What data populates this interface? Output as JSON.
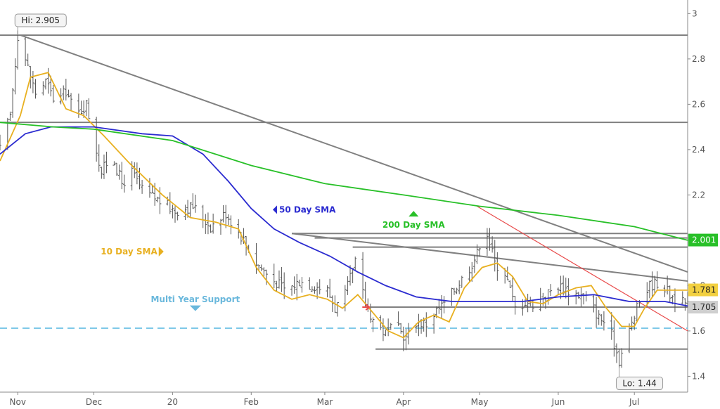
{
  "chart_data": {
    "type": "line",
    "title": "",
    "xlabel": "",
    "ylabel": "",
    "x_ticks": [
      "Nov",
      "Dec",
      "20",
      "Feb",
      "Mar",
      "Apr",
      "May",
      "Jun",
      "Jul"
    ],
    "y_ticks": [
      1.4,
      1.6,
      1.8,
      2,
      2.2,
      2.4,
      2.6,
      2.8,
      3
    ],
    "y_tick_labels": [
      "1.4",
      "1.6",
      "1.8",
      "2",
      "2.2",
      "2.4",
      "2.6",
      "2.8",
      "3"
    ],
    "ylim": [
      1.33,
      3.06
    ],
    "x_range": [
      "2019-10-25",
      "2020-07-22"
    ],
    "grid": false,
    "colors": {
      "price_bars": "#555555",
      "sma10": "#e8b020",
      "sma50": "#2b2bd0",
      "sma200": "#28c028",
      "trendlines": "#808080",
      "red_trend": "#e84a4a",
      "support_line": "#7ec8e8",
      "support_text": "#6ab8dc",
      "badge_200": "#28c028",
      "badge_10": "#f2d040",
      "badge_price": "#cfcfcf"
    },
    "series": [
      {
        "key": "sma10",
        "points": [
          [
            "2019-10-25",
            2.35
          ],
          [
            "2019-11-02",
            2.55
          ],
          [
            "2019-11-06",
            2.72
          ],
          [
            "2019-11-13",
            2.74
          ],
          [
            "2019-11-20",
            2.58
          ],
          [
            "2019-11-27",
            2.55
          ],
          [
            "2019-12-05",
            2.46
          ],
          [
            "2019-12-15",
            2.34
          ],
          [
            "2019-12-28",
            2.2
          ],
          [
            "2020-01-08",
            2.1
          ],
          [
            "2020-01-18",
            2.08
          ],
          [
            "2020-01-27",
            2.05
          ],
          [
            "2020-02-03",
            1.88
          ],
          [
            "2020-02-10",
            1.78
          ],
          [
            "2020-02-17",
            1.74
          ],
          [
            "2020-02-24",
            1.76
          ],
          [
            "2020-03-02",
            1.74
          ],
          [
            "2020-03-08",
            1.7
          ],
          [
            "2020-03-14",
            1.76
          ],
          [
            "2020-03-20",
            1.68
          ],
          [
            "2020-03-26",
            1.6
          ],
          [
            "2020-04-01",
            1.57
          ],
          [
            "2020-04-07",
            1.64
          ],
          [
            "2020-04-13",
            1.67
          ],
          [
            "2020-04-19",
            1.64
          ],
          [
            "2020-04-25",
            1.79
          ],
          [
            "2020-05-02",
            1.88
          ],
          [
            "2020-05-08",
            1.9
          ],
          [
            "2020-05-14",
            1.84
          ],
          [
            "2020-05-20",
            1.73
          ],
          [
            "2020-05-26",
            1.72
          ],
          [
            "2020-06-01",
            1.76
          ],
          [
            "2020-06-08",
            1.79
          ],
          [
            "2020-06-14",
            1.8
          ],
          [
            "2020-06-20",
            1.7
          ],
          [
            "2020-06-26",
            1.62
          ],
          [
            "2020-07-01",
            1.62
          ],
          [
            "2020-07-05",
            1.7
          ],
          [
            "2020-07-10",
            1.78
          ],
          [
            "2020-07-16",
            1.78
          ],
          [
            "2020-07-22",
            1.78
          ]
        ]
      },
      {
        "key": "sma50",
        "points": [
          [
            "2019-10-25",
            2.38
          ],
          [
            "2019-11-04",
            2.47
          ],
          [
            "2019-11-14",
            2.5
          ],
          [
            "2019-12-01",
            2.5
          ],
          [
            "2019-12-20",
            2.47
          ],
          [
            "2020-01-01",
            2.46
          ],
          [
            "2020-01-13",
            2.38
          ],
          [
            "2020-01-23",
            2.26
          ],
          [
            "2020-02-01",
            2.14
          ],
          [
            "2020-02-10",
            2.05
          ],
          [
            "2020-02-20",
            1.99
          ],
          [
            "2020-03-03",
            1.93
          ],
          [
            "2020-03-14",
            1.86
          ],
          [
            "2020-03-25",
            1.8
          ],
          [
            "2020-04-06",
            1.75
          ],
          [
            "2020-04-20",
            1.73
          ],
          [
            "2020-05-04",
            1.73
          ],
          [
            "2020-05-18",
            1.73
          ],
          [
            "2020-06-01",
            1.75
          ],
          [
            "2020-06-15",
            1.76
          ],
          [
            "2020-06-29",
            1.73
          ],
          [
            "2020-07-13",
            1.73
          ],
          [
            "2020-07-22",
            1.71
          ]
        ]
      },
      {
        "key": "sma200",
        "points": [
          [
            "2019-10-25",
            2.52
          ],
          [
            "2019-11-15",
            2.5
          ],
          [
            "2019-12-01",
            2.49
          ],
          [
            "2020-01-01",
            2.44
          ],
          [
            "2020-02-01",
            2.33
          ],
          [
            "2020-03-01",
            2.25
          ],
          [
            "2020-04-01",
            2.2
          ],
          [
            "2020-05-01",
            2.15
          ],
          [
            "2020-06-01",
            2.11
          ],
          [
            "2020-07-01",
            2.06
          ],
          [
            "2020-07-22",
            2.0
          ]
        ]
      }
    ],
    "trendlines": [
      {
        "key": "upper-resistance",
        "color_key": "trendlines",
        "from": [
          "2019-10-25",
          2.905
        ],
        "to": [
          "2020-07-22",
          2.905
        ]
      },
      {
        "key": "mid-resistance",
        "color_key": "trendlines",
        "from": [
          "2019-10-25",
          2.52
        ],
        "to": [
          "2020-07-22",
          2.52
        ]
      },
      {
        "key": "long-downtrend",
        "color_key": "trendlines",
        "from": [
          "2019-11-02",
          2.905
        ],
        "to": [
          "2020-07-22",
          1.86
        ]
      },
      {
        "key": "feb-horizontal",
        "color_key": "trendlines",
        "from": [
          "2020-02-17",
          2.03
        ],
        "to": [
          "2020-07-22",
          2.03
        ]
      },
      {
        "key": "feb-horizontal-2",
        "color_key": "trendlines",
        "from": [
          "2020-02-26",
          2.01
        ],
        "to": [
          "2020-07-22",
          2.01
        ]
      },
      {
        "key": "mar-horizontal",
        "color_key": "trendlines",
        "from": [
          "2020-03-12",
          1.97
        ],
        "to": [
          "2020-07-22",
          1.97
        ]
      },
      {
        "key": "feb-downtrend",
        "color_key": "trendlines",
        "from": [
          "2020-02-17",
          2.03
        ],
        "to": [
          "2020-07-22",
          1.82
        ]
      },
      {
        "key": "apr-support",
        "color_key": "trendlines",
        "from": [
          "2020-03-19",
          1.705
        ],
        "to": [
          "2020-07-22",
          1.705
        ]
      },
      {
        "key": "apr-low",
        "color_key": "trendlines",
        "from": [
          "2020-03-21",
          1.52
        ],
        "to": [
          "2020-07-22",
          1.52
        ]
      },
      {
        "key": "may-red-downtrend",
        "color_key": "red_trend",
        "from": [
          "2020-04-30",
          2.15
        ],
        "to": [
          "2020-07-22",
          1.6
        ]
      }
    ],
    "multi_year_support": {
      "label": "Multi Year Support",
      "value": 1.612,
      "label_date": "2020-01-10",
      "label_value": 1.74,
      "arrow_value": 1.7
    },
    "annotations": [
      {
        "key": "sma50-label",
        "text": "50 Day SMA",
        "date": "2020-02-12",
        "value": 2.135,
        "color_key": "sma50",
        "arrow": "left"
      },
      {
        "key": "sma200-label",
        "text": "200 Day SMA",
        "date": "2020-04-05",
        "value": 2.08,
        "color_key": "sma200",
        "arrow": "up"
      },
      {
        "key": "sma10-label",
        "text": "10 Day SMA",
        "date": "2019-12-26",
        "value": 1.95,
        "color_key": "sma10",
        "arrow": "right"
      }
    ],
    "hi_label": {
      "text": "Hi: 2.905",
      "date": "2019-11-01",
      "value": 2.905
    },
    "lo_label": {
      "text": "Lo: 1.44",
      "date": "2020-06-25",
      "value": 1.44
    },
    "red_marker": {
      "date": "2020-03-18",
      "value": 1.705
    },
    "last_value_badges": [
      {
        "key": "sma200-badge",
        "text": "2.001",
        "value": 2.001,
        "color_key": "badge_200",
        "text_color": "#ffffff"
      },
      {
        "key": "sma10-badge",
        "text": "1.781",
        "value": 1.781,
        "color_key": "badge_10",
        "text_color": "#222222"
      },
      {
        "key": "price-badge",
        "text": "1.705",
        "value": 1.705,
        "color_key": "badge_price",
        "text_color": "#222222"
      }
    ],
    "price_path": [
      [
        "2019-10-25",
        2.4
      ],
      [
        "2019-10-29",
        2.55
      ],
      [
        "2019-11-01",
        2.905
      ],
      [
        "2019-11-04",
        2.8
      ],
      [
        "2019-11-08",
        2.65
      ],
      [
        "2019-11-12",
        2.7
      ],
      [
        "2019-11-16",
        2.6
      ],
      [
        "2019-11-20",
        2.66
      ],
      [
        "2019-11-24",
        2.55
      ],
      [
        "2019-11-28",
        2.6
      ],
      [
        "2019-12-01",
        2.45
      ],
      [
        "2019-12-04",
        2.3
      ],
      [
        "2019-12-08",
        2.38
      ],
      [
        "2019-12-12",
        2.25
      ],
      [
        "2019-12-16",
        2.3
      ],
      [
        "2019-12-20",
        2.22
      ],
      [
        "2019-12-26",
        2.18
      ],
      [
        "2020-01-02",
        2.13
      ],
      [
        "2020-01-09",
        2.15
      ],
      [
        "2020-01-16",
        2.06
      ],
      [
        "2020-01-22",
        2.12
      ],
      [
        "2020-01-28",
        2.02
      ],
      [
        "2020-02-03",
        1.9
      ],
      [
        "2020-02-09",
        1.83
      ],
      [
        "2020-02-15",
        1.78
      ],
      [
        "2020-02-20",
        1.82
      ],
      [
        "2020-02-26",
        1.8
      ],
      [
        "2020-03-02",
        1.78
      ],
      [
        "2020-03-05",
        1.7
      ],
      [
        "2020-03-09",
        1.76
      ],
      [
        "2020-03-13",
        1.9
      ],
      [
        "2020-03-17",
        1.72
      ],
      [
        "2020-03-21",
        1.63
      ],
      [
        "2020-03-25",
        1.59
      ],
      [
        "2020-03-29",
        1.62
      ],
      [
        "2020-04-02",
        1.57
      ],
      [
        "2020-04-06",
        1.64
      ],
      [
        "2020-04-10",
        1.63
      ],
      [
        "2020-04-14",
        1.69
      ],
      [
        "2020-04-18",
        1.73
      ],
      [
        "2020-04-22",
        1.8
      ],
      [
        "2020-04-26",
        1.86
      ],
      [
        "2020-04-30",
        1.94
      ],
      [
        "2020-05-03",
        2.08
      ],
      [
        "2020-05-07",
        1.9
      ],
      [
        "2020-05-11",
        1.86
      ],
      [
        "2020-05-15",
        1.7
      ],
      [
        "2020-05-19",
        1.73
      ],
      [
        "2020-05-23",
        1.72
      ],
      [
        "2020-05-27",
        1.76
      ],
      [
        "2020-06-01",
        1.8
      ],
      [
        "2020-06-05",
        1.78
      ],
      [
        "2020-06-09",
        1.76
      ],
      [
        "2020-06-13",
        1.74
      ],
      [
        "2020-06-17",
        1.66
      ],
      [
        "2020-06-21",
        1.62
      ],
      [
        "2020-06-25",
        1.47
      ],
      [
        "2020-06-29",
        1.6
      ],
      [
        "2020-07-03",
        1.73
      ],
      [
        "2020-07-07",
        1.8
      ],
      [
        "2020-07-11",
        1.82
      ],
      [
        "2020-07-15",
        1.76
      ],
      [
        "2020-07-19",
        1.73
      ],
      [
        "2020-07-22",
        1.71
      ]
    ],
    "price_bar_seed": 17
  }
}
